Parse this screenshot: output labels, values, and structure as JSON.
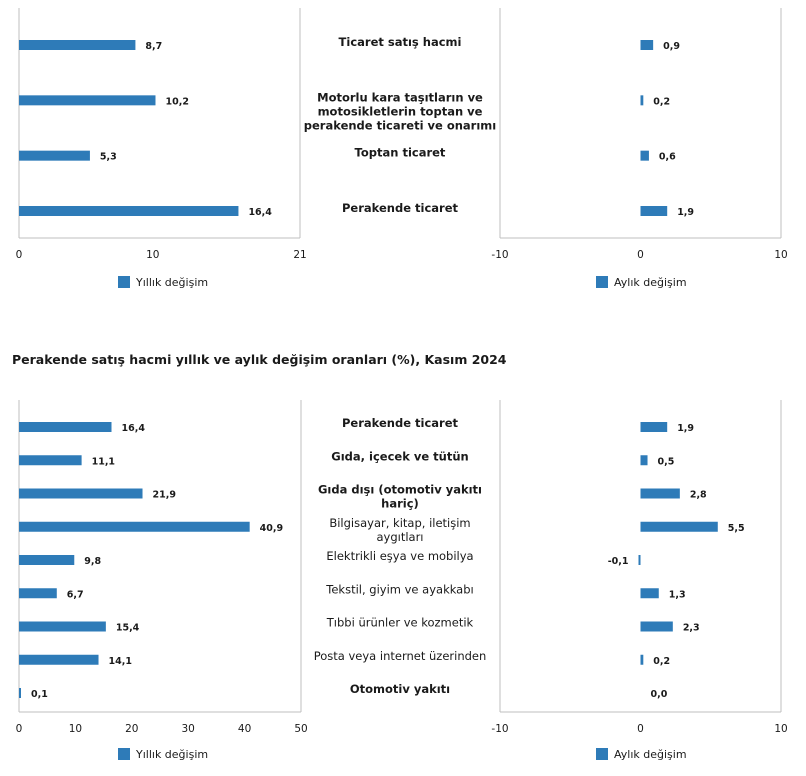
{
  "colors": {
    "bar": "#2e7bb8",
    "axis": "#bfbfbf",
    "text": "#1a1a1a"
  },
  "section2_title": "Perakende satış hacmi yıllık ve aylık değişim oranları (%), Kasım 2024",
  "chart_data": [
    {
      "type": "bar",
      "orientation": "horizontal",
      "title": "",
      "categories": [
        "Ticaret satış hacmi",
        "Motorlu kara taşıtların ve motosikletlerin toptan ve perakende ticareti ve onarımı",
        "Toptan ticaret",
        "Perakende ticaret"
      ],
      "category_lines": [
        [
          "Ticaret satış hacmi"
        ],
        [
          "Motorlu kara taşıtların ve",
          "motosikletlerin toptan ve",
          "perakende ticareti ve onarımı"
        ],
        [
          "Toptan ticaret"
        ],
        [
          "Perakende ticaret"
        ]
      ],
      "category_bold": [
        true,
        true,
        true,
        true
      ],
      "series": [
        {
          "name": "Yıllık değişim",
          "values": [
            8.7,
            10.2,
            5.3,
            16.4
          ],
          "labels": [
            "8,7",
            "10,2",
            "5,3",
            "16,4"
          ],
          "xlim": [
            0,
            21
          ],
          "ticks": [
            0,
            10,
            21
          ],
          "tick_labels": [
            "0",
            "10",
            "21"
          ]
        },
        {
          "name": "Aylık değişim",
          "values": [
            0.9,
            0.2,
            0.6,
            1.9
          ],
          "labels": [
            "0,9",
            "0,2",
            "0,6",
            "1,9"
          ],
          "xlim": [
            -10,
            10
          ],
          "ticks": [
            -10,
            0,
            10
          ],
          "tick_labels": [
            "-10",
            "0",
            "10"
          ]
        }
      ],
      "grid": false,
      "legend_position": "bottom"
    },
    {
      "type": "bar",
      "orientation": "horizontal",
      "title": "Perakende satış hacmi yıllık ve aylık değişim oranları (%), Kasım 2024",
      "categories": [
        "Perakende ticaret",
        "Gıda, içecek ve tütün",
        "Gıda dışı (otomotiv yakıtı hariç)",
        "Bilgisayar, kitap, iletişim aygıtları",
        "Elektrikli eşya ve mobilya",
        "Tekstil, giyim ve ayakkabı",
        "Tıbbi ürünler ve kozmetik",
        "Posta veya internet üzerinden",
        "Otomotiv yakıtı"
      ],
      "category_lines": [
        [
          "Perakende ticaret"
        ],
        [
          "Gıda, içecek ve tütün"
        ],
        [
          "Gıda dışı (otomotiv yakıtı",
          "hariç)"
        ],
        [
          "Bilgisayar, kitap, iletişim",
          "aygıtları"
        ],
        [
          "Elektrikli eşya ve mobilya"
        ],
        [
          "Tekstil, giyim ve ayakkabı"
        ],
        [
          "Tıbbi ürünler ve kozmetik"
        ],
        [
          "Posta veya internet üzerinden"
        ],
        [
          "Otomotiv yakıtı"
        ]
      ],
      "category_bold": [
        true,
        true,
        true,
        false,
        false,
        false,
        false,
        false,
        true
      ],
      "series": [
        {
          "name": "Yıllık değişim",
          "values": [
            16.4,
            11.1,
            21.9,
            40.9,
            9.8,
            6.7,
            15.4,
            14.1,
            0.1
          ],
          "labels": [
            "16,4",
            "11,1",
            "21,9",
            "40,9",
            "9,8",
            "6,7",
            "15,4",
            "14,1",
            "0,1"
          ],
          "xlim": [
            0,
            50
          ],
          "ticks": [
            0,
            10,
            20,
            30,
            40,
            50
          ],
          "tick_labels": [
            "0",
            "10",
            "20",
            "30",
            "40",
            "50"
          ]
        },
        {
          "name": "Aylık değişim",
          "values": [
            1.9,
            0.5,
            2.8,
            5.5,
            -0.1,
            1.3,
            2.3,
            0.2,
            0.0
          ],
          "labels": [
            "1,9",
            "0,5",
            "2,8",
            "5,5",
            "-0,1",
            "1,3",
            "2,3",
            "0,2",
            "0,0"
          ],
          "xlim": [
            -10,
            10
          ],
          "ticks": [
            -10,
            0,
            10
          ],
          "tick_labels": [
            "-10",
            "0",
            "10"
          ]
        }
      ],
      "grid": false,
      "legend_position": "bottom"
    }
  ]
}
